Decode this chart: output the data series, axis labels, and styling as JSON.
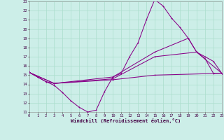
{
  "xlabel": "Windchill (Refroidissement éolien,°C)",
  "xlim": [
    0,
    23
  ],
  "ylim": [
    11,
    23
  ],
  "yticks": [
    11,
    12,
    13,
    14,
    15,
    16,
    17,
    18,
    19,
    20,
    21,
    22,
    23
  ],
  "xticks": [
    0,
    1,
    2,
    3,
    4,
    5,
    6,
    7,
    8,
    9,
    10,
    11,
    12,
    13,
    14,
    15,
    16,
    17,
    18,
    19,
    20,
    21,
    22,
    23
  ],
  "bg_color": "#cceee8",
  "grid_color": "#aaddcc",
  "line_color": "#880088",
  "line1_x": [
    0,
    1,
    2,
    3,
    4,
    5,
    6,
    7,
    8,
    9,
    10,
    11,
    12,
    13,
    14,
    15,
    16,
    17,
    18,
    19,
    20,
    21,
    22,
    23
  ],
  "line1_y": [
    15.3,
    14.8,
    14.3,
    13.9,
    13.1,
    12.2,
    11.5,
    11.0,
    11.2,
    13.2,
    14.8,
    15.2,
    17.0,
    18.5,
    21.0,
    23.2,
    22.5,
    21.2,
    20.2,
    19.0,
    17.5,
    16.8,
    15.2,
    15.2
  ],
  "line2_x": [
    0,
    1,
    2,
    3,
    10,
    15,
    19,
    20,
    21,
    22,
    23
  ],
  "line2_y": [
    15.3,
    14.8,
    14.3,
    14.1,
    14.8,
    17.5,
    19.0,
    17.5,
    17.0,
    16.5,
    15.2
  ],
  "line3_x": [
    0,
    3,
    10,
    15,
    20,
    23
  ],
  "line3_y": [
    15.3,
    14.1,
    14.6,
    17.0,
    17.5,
    15.2
  ],
  "line4_x": [
    0,
    3,
    10,
    15,
    23
  ],
  "line4_y": [
    15.3,
    14.1,
    14.5,
    15.0,
    15.2
  ]
}
